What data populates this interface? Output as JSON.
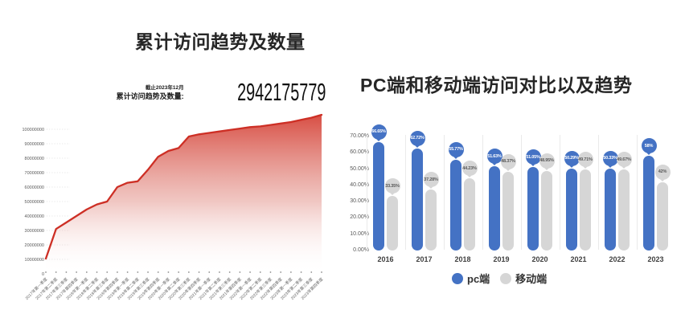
{
  "page": {
    "background": "#ffffff"
  },
  "left_chart": {
    "title": "累计访问趋势及数量",
    "annotation": {
      "date_note": "截止2023年12月",
      "label": "累计访问趋势及数量:",
      "value": "2942175779"
    }
  },
  "right_chart": {
    "title": "PC端和移动端访问对比以及趋势",
    "legend": [
      {
        "label": "pc端",
        "color": "#4472c4"
      },
      {
        "label": "移动端",
        "color": "#d6d6d6"
      }
    ]
  },
  "chart_data": [
    {
      "type": "area",
      "title": "累计访问趋势及数量",
      "note": "截止2023年12月",
      "total_label": "累计访问趋势及数量:",
      "total_value": "2942175779",
      "line_color": "#cd2f25",
      "fill_top_color": "#d6453a",
      "x": [
        "2017年第一季度",
        "2017年第二季度",
        "2017年第三季度",
        "2017年第四季度",
        "2018年第一季度",
        "2018年第二季度",
        "2018年第三季度",
        "2018年第四季度",
        "2019年第一季度",
        "2019年第二季度",
        "2019年第三季度",
        "2019年第四季度",
        "2020年第一季度",
        "2020年第二季度",
        "2020年第三季度",
        "2020年第四季度",
        "2021年第一季度",
        "2021年第二季度",
        "2021年第三季度",
        "2021年第四季度",
        "2022年第一季度",
        "2022年第二季度",
        "2022年第三季度",
        "2022年第四季度",
        "2023年第一季度",
        "2023年第二季度",
        "2023年第三季度",
        "2023年第四季度"
      ],
      "values": [
        10500000,
        31000000,
        35500000,
        40000000,
        44500000,
        48000000,
        50000000,
        60000000,
        63000000,
        64000000,
        72000000,
        81000000,
        85000000,
        87000000,
        95000000,
        96500000,
        97500000,
        98500000,
        99500000,
        100500000,
        101500000,
        102000000,
        103000000,
        104000000,
        105000000,
        106500000,
        108000000,
        110000000
      ],
      "yticks": [
        "100000000",
        "90000000",
        "80000000",
        "70000000",
        "60000000",
        "50000000",
        "40000000",
        "30000000",
        "20000000",
        "10000000",
        "0"
      ],
      "ylim": [
        0,
        115000000
      ],
      "grid": "faint-dotted-stubs",
      "legend_position": "none"
    },
    {
      "type": "bar",
      "title": "PC端和移动端访问对比以及趋势",
      "categories": [
        "2016",
        "2017",
        "2018",
        "2019",
        "2020",
        "2021",
        "2022",
        "2023"
      ],
      "series": [
        {
          "name": "pc端",
          "color": "#4472c4",
          "label_text_color": "#ffffff",
          "values": [
            66.65,
            62.72,
            55.77,
            51.63,
            51.05,
            50.29,
            50.33,
            58
          ],
          "labels": [
            "66.65%",
            "62.72%",
            "55.77%",
            "51.63%",
            "51.05%",
            "50.29%",
            "50.33%",
            "58%"
          ]
        },
        {
          "name": "移动端",
          "color": "#d6d6d6",
          "label_text_color": "#595959",
          "values": [
            33.35,
            37.28,
            44.23,
            48.37,
            48.95,
            49.71,
            49.67,
            42
          ],
          "labels": [
            "33.35%",
            "37.28%",
            "44.23%",
            "48.37%",
            "48.95%",
            "49.71%",
            "49.67%",
            "42%"
          ]
        }
      ],
      "yticks": [
        "70.00%",
        "60.00%",
        "50.00%",
        "40.00%",
        "30.00%",
        "20.00%",
        "10.00%",
        "0.00%"
      ],
      "ylim": [
        0,
        0.7
      ],
      "grid": "off",
      "legend_position": "bottom"
    }
  ]
}
